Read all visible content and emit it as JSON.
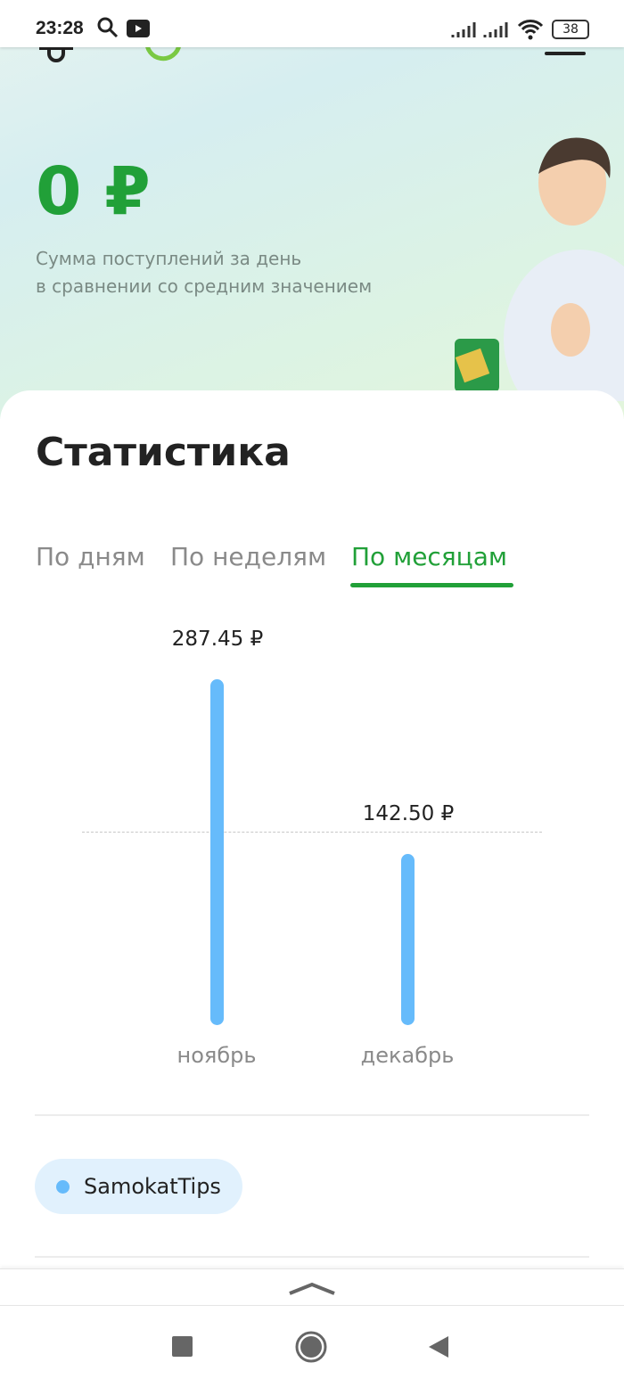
{
  "status_bar": {
    "time": "23:28",
    "battery": "38"
  },
  "hero": {
    "amount": "0 ₽",
    "subtitle_line1": "Сумма поступлений за день",
    "subtitle_line2": "в сравнении со средним значением"
  },
  "stats": {
    "title": "Статистика",
    "tabs": [
      {
        "label": "По дням",
        "active": false
      },
      {
        "label": "По неделям",
        "active": false
      },
      {
        "label": "По месяцам",
        "active": true
      }
    ],
    "accent_color": "#21a038"
  },
  "chart_data": {
    "type": "bar",
    "categories": [
      "ноябрь",
      "декабрь"
    ],
    "values": [
      287.45,
      142.5
    ],
    "value_labels": [
      "287.45 ₽",
      "142.50 ₽"
    ],
    "bar_color": "#66bbfb",
    "ylim": [
      0,
      287.45
    ],
    "grid": false
  },
  "legend": {
    "items": [
      {
        "label": "SamokatTips",
        "color": "#66bbfb"
      }
    ]
  }
}
